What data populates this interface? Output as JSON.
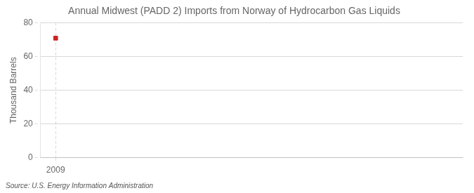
{
  "chart_data": {
    "type": "scatter",
    "title": "Annual Midwest (PADD 2) Imports from Norway of Hydrocarbon Gas Liquids",
    "ylabel": "Thousand Barrels",
    "annotations": [
      "Source: U.S. Energy Information Administration"
    ],
    "x": [
      2009
    ],
    "values": [
      71
    ],
    "color": "#cc2222",
    "marker": "square",
    "xlim": [
      2008.5,
      2022.5
    ],
    "xticks": [
      2009
    ],
    "ylim": [
      0,
      80
    ],
    "yticks": [
      0,
      20,
      40,
      60,
      80
    ],
    "grid": true
  }
}
